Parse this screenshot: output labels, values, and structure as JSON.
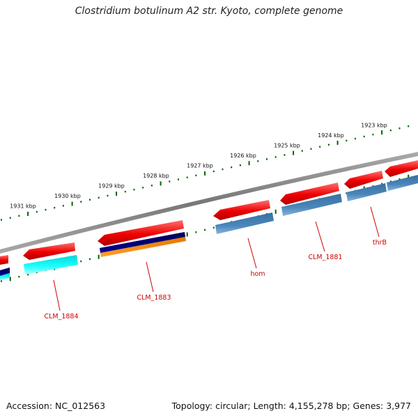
{
  "title": "Clostridium botulinum A2 str. Kyoto, complete genome",
  "footer": {
    "accession": "Accession: NC_012563",
    "summary": "Topology: circular; Length: 4,155,278 bp; Genes: 3,977"
  },
  "ruler_labels": [
    "1923 kbp",
    "1924 kbp",
    "1925 kbp",
    "1926 kbp",
    "1927 kbp",
    "1928 kbp",
    "1929 kbp",
    "1930 kbp",
    "1931 kbp"
  ],
  "genes": [
    {
      "label": "CLM_1884"
    },
    {
      "label": "CLM_1883"
    },
    {
      "label": "hom"
    },
    {
      "label": "CLM_1881"
    },
    {
      "label": "thrB"
    }
  ],
  "colors": {
    "forward_gene": "#ff0000",
    "cds_steelblue": "#4682b4",
    "cds_cyan": "#00ffff",
    "cds_navy": "#000080",
    "cds_orange": "#ff8c00",
    "backbone": "#808080",
    "ruler_ticks": "#006400",
    "label_red": "#cc0000"
  }
}
